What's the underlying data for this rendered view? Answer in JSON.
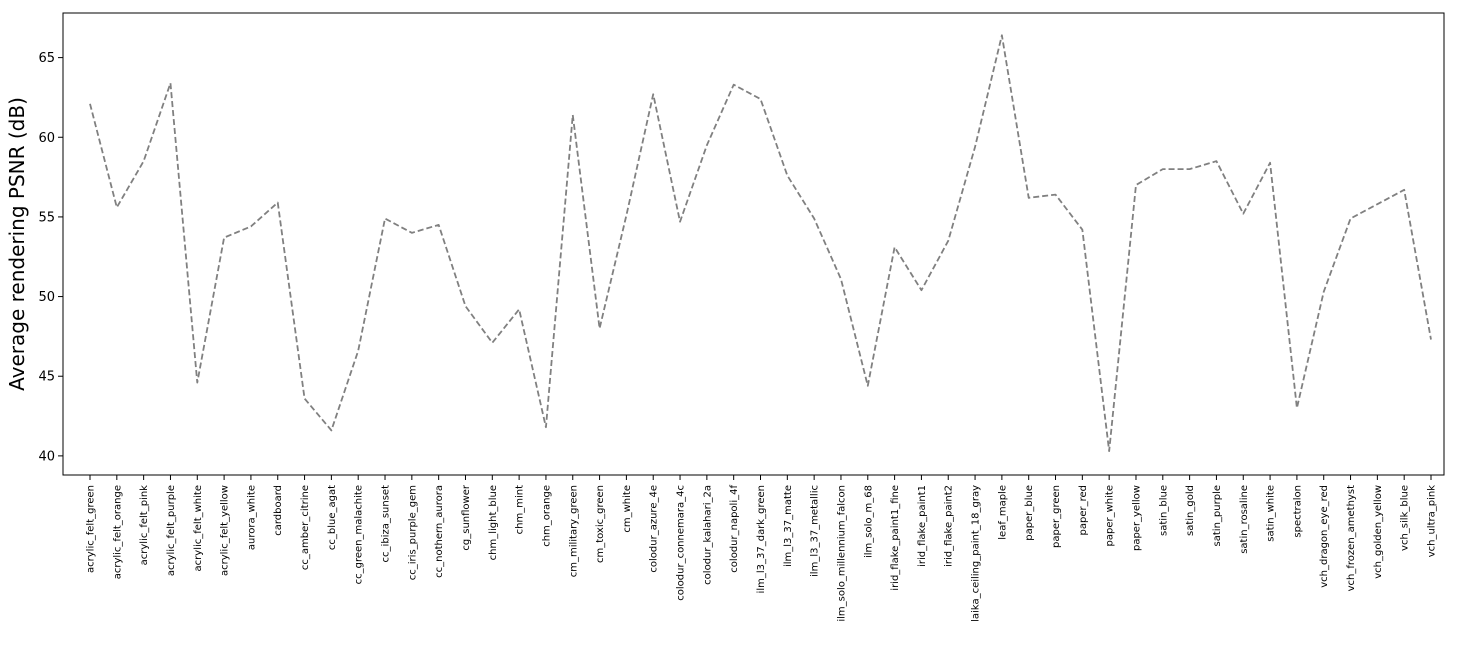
{
  "chart_data": {
    "type": "line",
    "title": "",
    "xlabel": "",
    "ylabel": "Average rendering PSNR (dB)",
    "ylim": [
      38.8,
      67.8
    ],
    "yticks": [
      40,
      45,
      50,
      55,
      60,
      65
    ],
    "grid": false,
    "legend": "none",
    "line_color": "#808080",
    "line_style": "dashed",
    "categories": [
      "acrylic_felt_green",
      "acrylic_felt_orange",
      "acrylic_felt_pink",
      "acrylic_felt_purple",
      "acrylic_felt_white",
      "acrylic_felt_yellow",
      "aurora_white",
      "cardboard",
      "cc_amber_citrine",
      "cc_blue_agat",
      "cc_green_malachite",
      "cc_ibiza_sunset",
      "cc_iris_purple_gem",
      "cc_nothern_aurora",
      "cg_sunflower",
      "chm_light_blue",
      "chm_mint",
      "chm_orange",
      "cm_military_green",
      "cm_toxic_green",
      "cm_white",
      "colodur_azure_4e",
      "colodur_connemara_4c",
      "colodur_kalahari_2a",
      "colodur_napoli_4f",
      "ilm_l3_37_dark_green",
      "ilm_l3_37_matte",
      "ilm_l3_37_metallic",
      "ilm_solo_millennium_falcon",
      "ilm_solo_m_68",
      "irid_flake_paint1_fine",
      "irid_flake_paint1",
      "irid_flake_paint2",
      "laika_ceiling_paint_18_gray",
      "leaf_maple",
      "paper_blue",
      "paper_green",
      "paper_red",
      "paper_white",
      "paper_yellow",
      "satin_blue",
      "satin_gold",
      "satin_purple",
      "satin_rosaline",
      "satin_white",
      "spectralon",
      "vch_dragon_eye_red",
      "vch_frozen_amethyst",
      "vch_golden_yellow",
      "vch_silk_blue",
      "vch_ultra_pink"
    ],
    "values": [
      62.1,
      55.6,
      58.5,
      63.4,
      44.6,
      53.7,
      54.4,
      55.9,
      43.6,
      41.6,
      46.6,
      54.9,
      54.0,
      54.5,
      49.4,
      47.1,
      49.2,
      41.8,
      61.4,
      48.0,
      55.1,
      62.7,
      54.7,
      59.5,
      63.3,
      62.4,
      57.6,
      54.9,
      51.1,
      44.4,
      53.1,
      50.4,
      53.5,
      59.4,
      66.4,
      56.2,
      56.4,
      54.2,
      40.3,
      57.0,
      58.0,
      58.0,
      58.5,
      55.2,
      58.4,
      43.0,
      50.3,
      54.9,
      55.8,
      56.7,
      47.3
    ]
  }
}
